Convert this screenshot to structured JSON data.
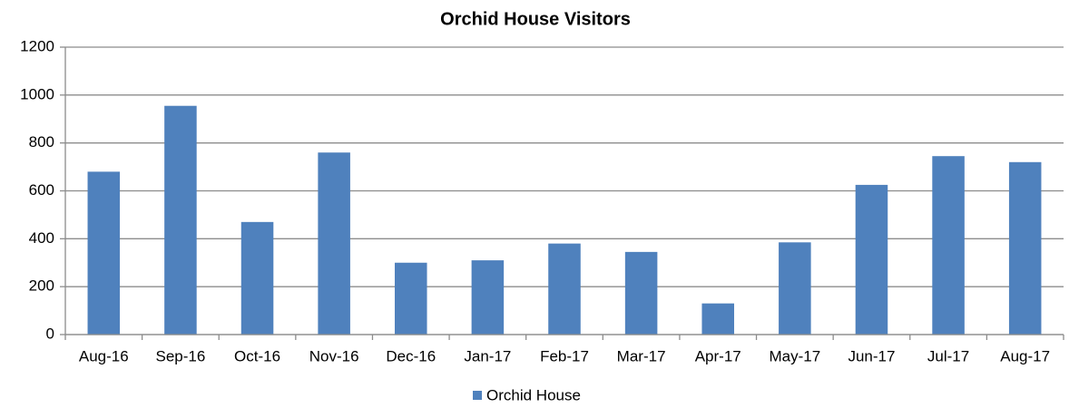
{
  "chart_data": {
    "type": "bar",
    "title": "Orchid House Visitors",
    "categories": [
      "Aug-16",
      "Sep-16",
      "Oct-16",
      "Nov-16",
      "Dec-16",
      "Jan-17",
      "Feb-17",
      "Mar-17",
      "Apr-17",
      "May-17",
      "Jun-17",
      "Jul-17",
      "Aug-17"
    ],
    "series": [
      {
        "name": "Orchid House",
        "color": "#4f81bd",
        "values": [
          680,
          955,
          470,
          760,
          300,
          310,
          380,
          345,
          130,
          385,
          625,
          745,
          720
        ]
      }
    ],
    "ylim": [
      0,
      1200
    ],
    "yticks": [
      0,
      200,
      400,
      600,
      800,
      1000,
      1200
    ],
    "grid": true,
    "legend": "bottom"
  }
}
